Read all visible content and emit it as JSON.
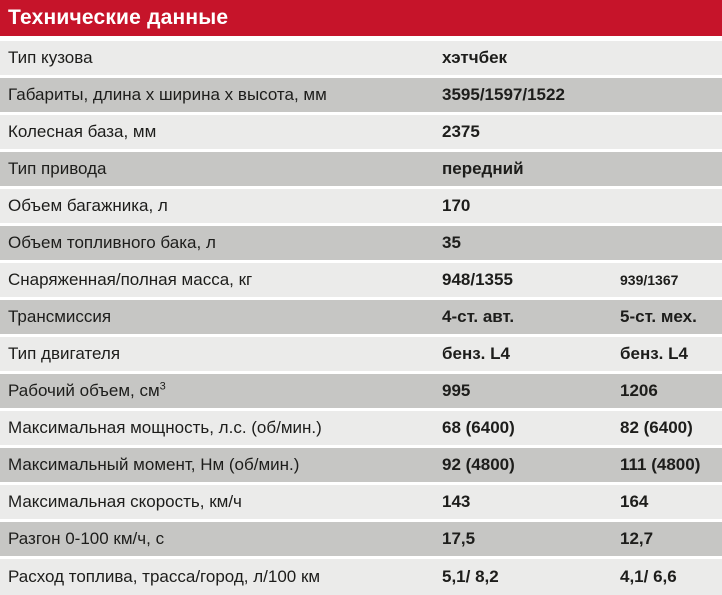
{
  "colors": {
    "header-bg": "#C6142A",
    "header-text": "#FFFFFF",
    "row-light": "#EBEBEA",
    "row-dark": "#C6C6C4",
    "text": "#1D1D1B"
  },
  "header": {
    "title": "Технические данные"
  },
  "table": {
    "rows": [
      {
        "label": "Тип кузова",
        "value1": "хэтчбек",
        "value2": ""
      },
      {
        "label": "Габариты, длина х ширина х высота, мм",
        "value1": "3595/1597/1522",
        "value2": ""
      },
      {
        "label": "Колесная база, мм",
        "value1": "2375",
        "value2": ""
      },
      {
        "label": "Тип привода",
        "value1": "передний",
        "value2": ""
      },
      {
        "label": "Объем багажника, л",
        "value1": "170",
        "value2": ""
      },
      {
        "label": "Объем топливного бака, л",
        "value1": "35",
        "value2": ""
      },
      {
        "label": "Снаряженная/полная масса, кг",
        "value1": "948/1355",
        "value2": "939/1367",
        "value2_small": true
      },
      {
        "label": "Трансмиссия",
        "value1": "4-ст. авт.",
        "value2": "5-ст. мех."
      },
      {
        "label": "Тип двигателя",
        "value1": "бенз. L4",
        "value2": "бенз. L4"
      },
      {
        "label": "Рабочий объем, см",
        "label_sup": "3",
        "value1": "995",
        "value2": "1206"
      },
      {
        "label": "Максимальная мощность, л.с. (об/мин.)",
        "value1": "68 (6400)",
        "value2": "82 (6400)"
      },
      {
        "label": "Максимальный момент, Нм (об/мин.)",
        "value1": "92 (4800)",
        "value2": "111 (4800)"
      },
      {
        "label": "Максимальная скорость, км/ч",
        "value1": "143",
        "value2": "164"
      },
      {
        "label": "Разгон 0-100 км/ч, с",
        "value1": "17,5",
        "value2": "12,7"
      },
      {
        "label": "Расход топлива, трасса/город, л/100 км",
        "value1": "5,1/ 8,2",
        "value2": "4,1/ 6,6"
      }
    ]
  }
}
